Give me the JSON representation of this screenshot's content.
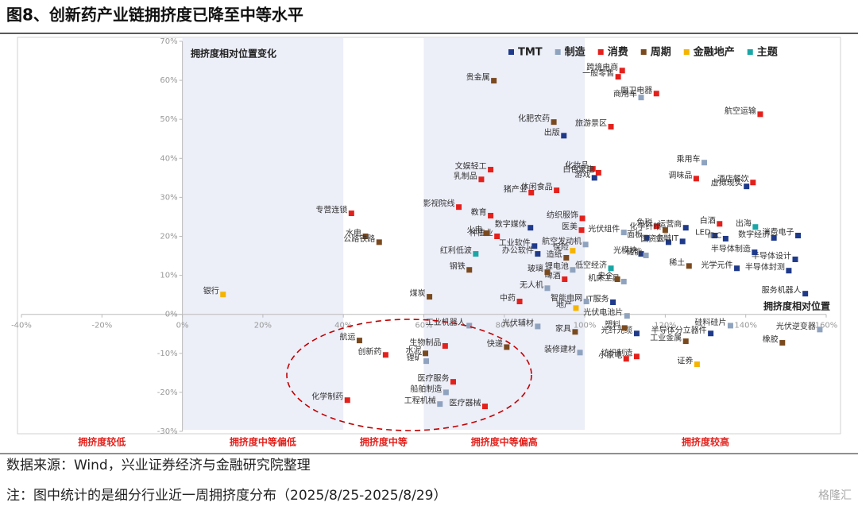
{
  "chart_data": {
    "type": "scatter",
    "title": "图8、创新药产业链拥挤度已降至中等水平",
    "annotations": [
      "拥挤度相对位置变化",
      "拥挤度相对位置"
    ],
    "zones": [
      {
        "label": "拥挤度较低",
        "from": -40,
        "to": 0
      },
      {
        "label": "拥挤度中等偏低",
        "from": 0,
        "to": 40
      },
      {
        "label": "拥挤度中等",
        "from": 40,
        "to": 60
      },
      {
        "label": "拥挤度中等偏高",
        "from": 60,
        "to": 100
      },
      {
        "label": "拥挤度较高",
        "from": 100,
        "to": 160
      }
    ],
    "xlim": [
      -40,
      160
    ],
    "ylim": [
      -30,
      70
    ],
    "xticks": [
      {
        "value": -40,
        "label": "-40%"
      },
      {
        "value": -20,
        "label": "-20%"
      },
      {
        "value": 0,
        "label": "0%"
      },
      {
        "value": 20,
        "label": "20%"
      },
      {
        "value": 40,
        "label": "40%"
      },
      {
        "value": 60,
        "label": "60%"
      },
      {
        "value": 80,
        "label": "80%"
      },
      {
        "value": 100,
        "label": "100%"
      },
      {
        "value": 120,
        "label": "120%"
      },
      {
        "value": 140,
        "label": "140%"
      },
      {
        "value": 160,
        "label": "160%"
      }
    ],
    "yticks": [
      {
        "value": -30,
        "label": "-30%"
      },
      {
        "value": -20,
        "label": "-20%"
      },
      {
        "value": -10,
        "label": "-10%"
      },
      {
        "value": 0,
        "label": "0%"
      },
      {
        "value": 10,
        "label": "10%"
      },
      {
        "value": 20,
        "label": "20%"
      },
      {
        "value": 30,
        "label": "30%"
      },
      {
        "value": 40,
        "label": "40%"
      },
      {
        "value": 50,
        "label": "50%"
      },
      {
        "value": 60,
        "label": "60%"
      },
      {
        "value": 70,
        "label": "70%"
      }
    ],
    "series": [
      {
        "name": "TMT",
        "color": "#1f3a8a",
        "labels": [
          "出版",
          "游戏",
          "虚拟现实",
          "数字媒体",
          "工业软件",
          "办公软件",
          "运营商",
          "数字经济",
          "消费电子",
          "半导体设计",
          "半导体封测",
          "服务机器人",
          "面板",
          "国资云",
          "金融IT",
          "LED",
          "IDC",
          "IT服务",
          "光模块",
          "光纤光缆",
          "半导体分立器件",
          "半导体制造",
          "光学元件"
        ],
        "x": [
          94.8,
          102.4,
          140.2,
          86.5,
          87.5,
          88.3,
          125.1,
          147,
          153,
          152.3,
          150.7,
          154.8,
          115.4,
          120.8,
          124.3,
          132.3,
          135,
          107,
          114,
          112.9,
          131.3,
          142.2,
          137.8
        ],
        "values": [
          45.8,
          35,
          32.8,
          22.2,
          17.5,
          15.5,
          22.2,
          19.6,
          20.2,
          14.1,
          11.2,
          5.3,
          19.6,
          18.5,
          18.7,
          20.2,
          19.4,
          3.1,
          15.5,
          -4.9,
          -4.9,
          15.9,
          11.8
        ]
      },
      {
        "name": "制造",
        "color": "#8fa3bf",
        "labels": [
          "锂矿",
          "工业机器人",
          "船舶制造",
          "工程机械",
          "光伏辅材",
          "装修建材",
          "商用车",
          "乘用车",
          "光伏组件",
          "航空发动机",
          "锂电池",
          "无人机",
          "智能电网",
          "机床工具",
          "光伏电池片",
          "储能",
          "硅料硅片",
          "光伏逆变器"
        ],
        "x": [
          60.6,
          71.3,
          65.5,
          64,
          88.3,
          98.8,
          114,
          129.7,
          109.7,
          100.2,
          97,
          90.7,
          100.4,
          109.7,
          110.5,
          115.2,
          136.2,
          158.4
        ],
        "values": [
          -12,
          -2.9,
          -20,
          -23,
          -3.1,
          -9.8,
          55.6,
          38.9,
          21,
          17.9,
          11.4,
          6.7,
          3.3,
          8.4,
          -0.4,
          15.1,
          -2.9,
          -3.9
        ]
      },
      {
        "name": "消费",
        "color": "#e3211c",
        "labels": [
          "专营连锁",
          "化学制药",
          "创新药",
          "生物制品",
          "医疗服务",
          "医疗器械",
          "跨境电商",
          "一般零售",
          "厨卫电器",
          "旅游景区",
          "航空运输",
          "调味品",
          "酒店餐饮",
          "化妆品",
          "白色家电",
          "文娱轻工",
          "乳制品",
          "猪产业",
          "休闲食品",
          "影视院线",
          "教育",
          "种植业",
          "纺织服饰",
          "医美",
          "免税",
          "白酒",
          "啤酒",
          "中药",
          "小家电",
          "纺织制造"
        ],
        "x": [
          42,
          41,
          50.5,
          65.3,
          67.3,
          75.2,
          109.3,
          108.3,
          117.8,
          106.5,
          143.6,
          127.7,
          141.8,
          102,
          103.4,
          76.6,
          74.3,
          86.7,
          93,
          68.7,
          76.6,
          78.2,
          99.4,
          99.2,
          117.8,
          133.5,
          95,
          83.8,
          110.3,
          112.9
        ],
        "values": [
          25.9,
          -22,
          -10.4,
          -8.1,
          -17.3,
          -23.6,
          62.5,
          60.9,
          56.6,
          48.1,
          51.3,
          34.8,
          33.8,
          37.3,
          36.3,
          37.1,
          34.6,
          31.2,
          31.8,
          27.5,
          25.3,
          20,
          24.6,
          21.6,
          22.6,
          23.2,
          9,
          3.3,
          -11.4,
          -10.8
        ]
      },
      {
        "name": "周期",
        "color": "#7a4a1f",
        "labels": [
          "水电",
          "公路铁路",
          "煤炭",
          "航运",
          "水泥",
          "快递",
          "家具",
          "贵金属",
          "化肥农药",
          "火电",
          "钢铁",
          "玻璃",
          "造纸",
          "化学纤维",
          "央企",
          "塑料",
          "工业金属",
          "橡胶",
          "稀土"
        ],
        "x": [
          45.5,
          48.9,
          61.4,
          44,
          60.4,
          80.6,
          97.6,
          77.4,
          92.3,
          75.6,
          71.3,
          90.7,
          95.4,
          120,
          108.1,
          109.9,
          125.1,
          149.1,
          125.9
        ],
        "values": [
          20,
          18.5,
          4.5,
          -6.7,
          -10,
          -8.4,
          -4.5,
          59.9,
          49.3,
          20.8,
          11.4,
          10.8,
          14.5,
          21.6,
          9,
          -3.5,
          -6.9,
          -7.3,
          12.4
        ]
      },
      {
        "name": "金融地产",
        "color": "#f5b400",
        "labels": [
          "银行",
          "保险",
          "地产",
          "证券"
        ],
        "x": [
          10.1,
          97,
          97.8,
          127.9
        ],
        "values": [
          5.1,
          16.3,
          1.6,
          -12.8
        ]
      },
      {
        "name": "主题",
        "color": "#1aa6a6",
        "labels": [
          "红利低波",
          "低空经济",
          "出海"
        ],
        "x": [
          72.9,
          106.5,
          142.4
        ],
        "values": [
          15.5,
          11.8,
          22.4
        ]
      }
    ],
    "source": "数据来源：Wind，兴业证券经济与金融研究院整理",
    "note": "注：图中统计的是细分行业近一周拥挤度分布（2025/8/25-2025/8/29）",
    "watermark": "格隆汇"
  }
}
